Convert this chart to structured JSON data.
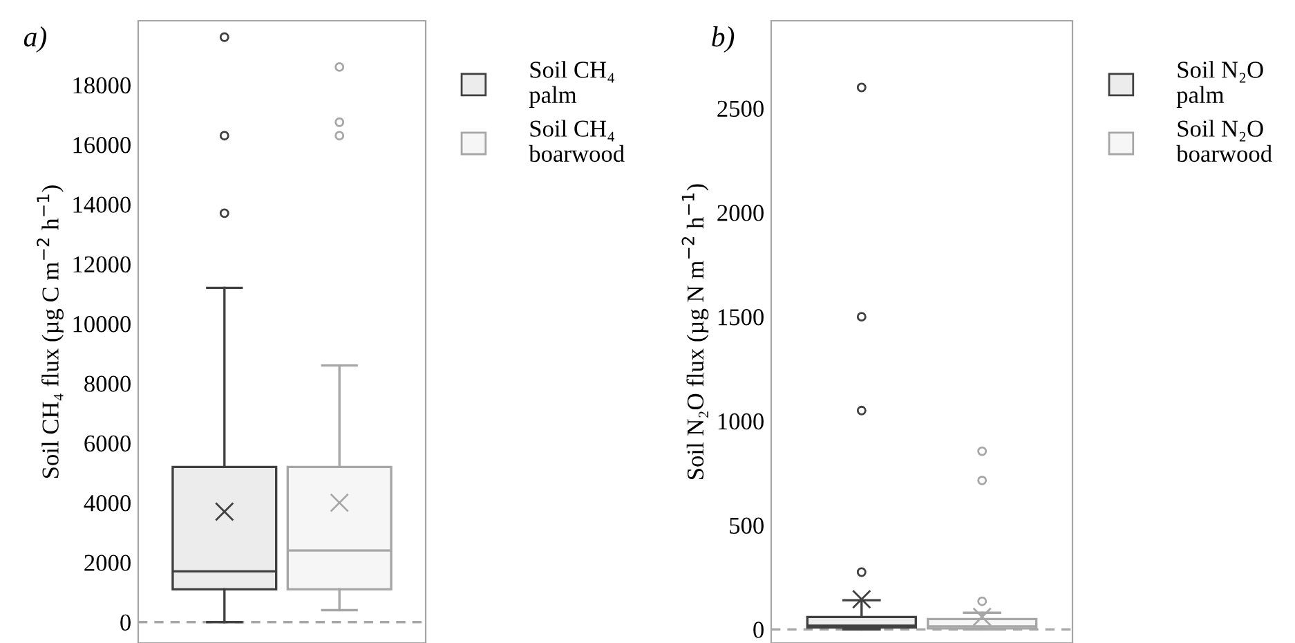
{
  "chart_data": [
    {
      "type": "box",
      "title": "a)",
      "ylabel": "Soil CH₄ flux (µg C m$^{−2}$ h$^{−1}$)",
      "categories": [
        null
      ],
      "ylim": [
        -700,
        20150
      ],
      "yticks": [
        0,
        2000,
        4000,
        6000,
        8000,
        10000,
        12000,
        14000,
        16000,
        18000
      ],
      "tick_labels": "y",
      "grid": false,
      "legend": "top right",
      "marker": "circle",
      "ref_lines": [
        {
          "axis": "y",
          "value": 0,
          "color": "#a6a6a6",
          "line_style": "dashed"
        }
      ],
      "series": [
        {
          "name": "Soil CH₄\npalm",
          "color": "#404040",
          "boxes": [
            {
              "low": 0,
              "q1": 1100,
              "median": 1700,
              "q3": 5200,
              "high": 11200,
              "mean": 3700,
              "outliers": [
                13700,
                16300,
                19600
              ]
            }
          ]
        },
        {
          "name": "Soil CH₄\nboarwood",
          "color": "#a6a6a6",
          "boxes": [
            {
              "low": 400,
              "q1": 1100,
              "median": 2400,
              "q3": 5200,
              "high": 8600,
              "mean": 4000,
              "outliers": [
                16300,
                16750,
                18600
              ]
            }
          ]
        }
      ]
    },
    {
      "type": "box",
      "title": "b)",
      "ylabel": "Soil N₂O flux (µg N m$^{−2}$ h$^{−1}$)",
      "categories": [
        null
      ],
      "ylim": [
        -65,
        2920
      ],
      "yticks": [
        0,
        500,
        1000,
        1500,
        2000,
        2500
      ],
      "tick_labels": "y",
      "grid": false,
      "legend": "top right",
      "marker": "circle",
      "ref_lines": [
        {
          "axis": "y",
          "value": 0,
          "color": "#a6a6a6",
          "line_style": "dashed"
        }
      ],
      "series": [
        {
          "name": "Soil N₂O\npalm",
          "color": "#404040",
          "boxes": [
            {
              "low": 0,
              "q1": 9,
              "median": 18,
              "q3": 60,
              "high": 140,
              "mean": 145,
              "outliers": [
                275,
                1050,
                1500,
                2600
              ]
            }
          ]
        },
        {
          "name": "Soil N₂O\nboarwood",
          "color": "#a6a6a6",
          "boxes": [
            {
              "low": 0,
              "q1": 5,
              "median": 15,
              "q3": 50,
              "high": 80,
              "mean": 60,
              "outliers": [
                135,
                715,
                855
              ]
            }
          ]
        }
      ]
    }
  ]
}
